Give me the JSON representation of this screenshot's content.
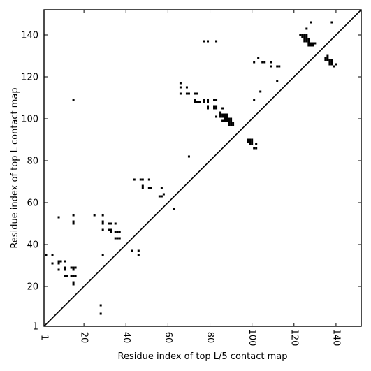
{
  "chart_data": {
    "type": "scatter",
    "title": "",
    "xlabel": "Residue index of top L/5 contact map",
    "ylabel": "Residue index of top L contact map",
    "xlim": [
      1,
      152
    ],
    "ylim": [
      1,
      152
    ],
    "xticks": [
      1,
      20,
      40,
      60,
      80,
      100,
      120,
      140
    ],
    "yticks": [
      1,
      20,
      40,
      60,
      80,
      100,
      120,
      140
    ],
    "tick_labels": {
      "x": [
        "1",
        "20",
        "40",
        "60",
        "80",
        "100",
        "120",
        "140"
      ],
      "y": [
        "1",
        "20",
        "40",
        "60",
        "80",
        "100",
        "120",
        "140"
      ]
    },
    "diagonal": true,
    "marker_color": "#000000",
    "series": [
      {
        "values": [
          [
            2,
            35
          ],
          [
            5,
            35
          ],
          [
            5,
            31
          ],
          [
            8,
            53
          ],
          [
            8,
            32
          ],
          [
            9,
            32
          ],
          [
            8,
            31
          ],
          [
            8,
            28
          ],
          [
            11,
            32
          ],
          [
            11,
            29
          ],
          [
            11,
            28
          ],
          [
            11,
            25
          ],
          [
            12,
            25
          ],
          [
            14,
            25
          ],
          [
            15,
            25
          ],
          [
            16,
            25
          ],
          [
            14,
            29
          ],
          [
            15,
            29
          ],
          [
            16,
            29
          ],
          [
            15,
            28
          ],
          [
            15,
            22
          ],
          [
            15,
            21
          ],
          [
            15,
            54
          ],
          [
            15,
            51
          ],
          [
            15,
            50
          ],
          [
            15,
            109
          ],
          [
            25,
            54
          ],
          [
            29,
            54
          ],
          [
            29,
            51
          ],
          [
            29,
            50
          ],
          [
            29,
            47
          ],
          [
            29,
            35
          ],
          [
            28,
            11
          ],
          [
            28,
            7
          ],
          [
            32,
            50
          ],
          [
            33,
            50
          ],
          [
            35,
            50
          ],
          [
            32,
            47
          ],
          [
            33,
            47
          ],
          [
            33,
            46
          ],
          [
            35,
            46
          ],
          [
            36,
            46
          ],
          [
            37,
            46
          ],
          [
            35,
            43
          ],
          [
            36,
            43
          ],
          [
            37,
            43
          ],
          [
            43,
            37
          ],
          [
            46,
            37
          ],
          [
            46,
            35
          ],
          [
            44,
            71
          ],
          [
            47,
            71
          ],
          [
            48,
            71
          ],
          [
            48,
            68
          ],
          [
            48,
            67
          ],
          [
            51,
            71
          ],
          [
            51,
            67
          ],
          [
            52,
            67
          ],
          [
            56,
            63
          ],
          [
            57,
            63
          ],
          [
            58,
            64
          ],
          [
            57,
            67
          ],
          [
            63,
            57
          ],
          [
            66,
            117
          ],
          [
            66,
            115
          ],
          [
            66,
            112
          ],
          [
            69,
            115
          ],
          [
            69,
            112
          ],
          [
            70,
            112
          ],
          [
            70,
            82
          ],
          [
            73,
            112
          ],
          [
            74,
            112
          ],
          [
            73,
            109
          ],
          [
            73,
            108
          ],
          [
            74,
            108
          ],
          [
            75,
            108
          ],
          [
            77,
            109
          ],
          [
            77,
            108
          ],
          [
            77,
            137
          ],
          [
            79,
            137
          ],
          [
            83,
            137
          ],
          [
            79,
            109
          ],
          [
            79,
            108
          ],
          [
            79,
            106
          ],
          [
            79,
            105
          ],
          [
            82,
            109
          ],
          [
            83,
            109
          ],
          [
            82,
            106
          ],
          [
            83,
            106
          ],
          [
            82,
            105
          ],
          [
            83,
            105
          ],
          [
            83,
            101
          ],
          [
            85,
            103
          ],
          [
            86,
            105
          ],
          [
            85,
            102
          ],
          [
            86,
            102
          ],
          [
            87,
            102
          ],
          [
            88,
            102
          ],
          [
            85,
            101
          ],
          [
            86,
            101
          ],
          [
            87,
            101
          ],
          [
            88,
            101
          ],
          [
            87,
            100
          ],
          [
            88,
            100
          ],
          [
            87,
            99
          ],
          [
            88,
            99
          ],
          [
            86,
            99
          ],
          [
            89,
            100
          ],
          [
            90,
            100
          ],
          [
            89,
            99
          ],
          [
            90,
            99
          ],
          [
            89,
            98
          ],
          [
            90,
            98
          ],
          [
            91,
            98
          ],
          [
            89,
            97
          ],
          [
            90,
            97
          ],
          [
            91,
            97
          ],
          [
            98,
            90
          ],
          [
            99,
            90
          ],
          [
            98,
            89
          ],
          [
            99,
            89
          ],
          [
            100,
            89
          ],
          [
            99,
            88
          ],
          [
            100,
            88
          ],
          [
            100,
            90
          ],
          [
            101,
            86
          ],
          [
            102,
            86
          ],
          [
            102,
            88
          ],
          [
            101,
            109
          ],
          [
            101,
            127
          ],
          [
            103,
            129
          ],
          [
            104,
            113
          ],
          [
            105,
            127
          ],
          [
            106,
            127
          ],
          [
            109,
            127
          ],
          [
            109,
            125
          ],
          [
            112,
            125
          ],
          [
            113,
            125
          ],
          [
            112,
            118
          ],
          [
            123,
            140
          ],
          [
            124,
            140
          ],
          [
            125,
            140
          ],
          [
            126,
            140
          ],
          [
            124,
            139
          ],
          [
            125,
            139
          ],
          [
            126,
            139
          ],
          [
            125,
            138
          ],
          [
            126,
            138
          ],
          [
            127,
            138
          ],
          [
            125,
            137
          ],
          [
            126,
            137
          ],
          [
            127,
            137
          ],
          [
            127,
            136
          ],
          [
            128,
            136
          ],
          [
            129,
            136
          ],
          [
            130,
            136
          ],
          [
            127,
            135
          ],
          [
            128,
            135
          ],
          [
            129,
            135
          ],
          [
            126,
            143
          ],
          [
            128,
            146
          ],
          [
            135,
            128
          ],
          [
            136,
            128
          ],
          [
            135,
            129
          ],
          [
            136,
            129
          ],
          [
            136,
            130
          ],
          [
            137,
            128
          ],
          [
            138,
            128
          ],
          [
            137,
            127
          ],
          [
            138,
            127
          ],
          [
            137,
            126
          ],
          [
            138,
            126
          ],
          [
            138,
            146
          ],
          [
            139,
            125
          ],
          [
            140,
            126
          ]
        ]
      }
    ]
  }
}
